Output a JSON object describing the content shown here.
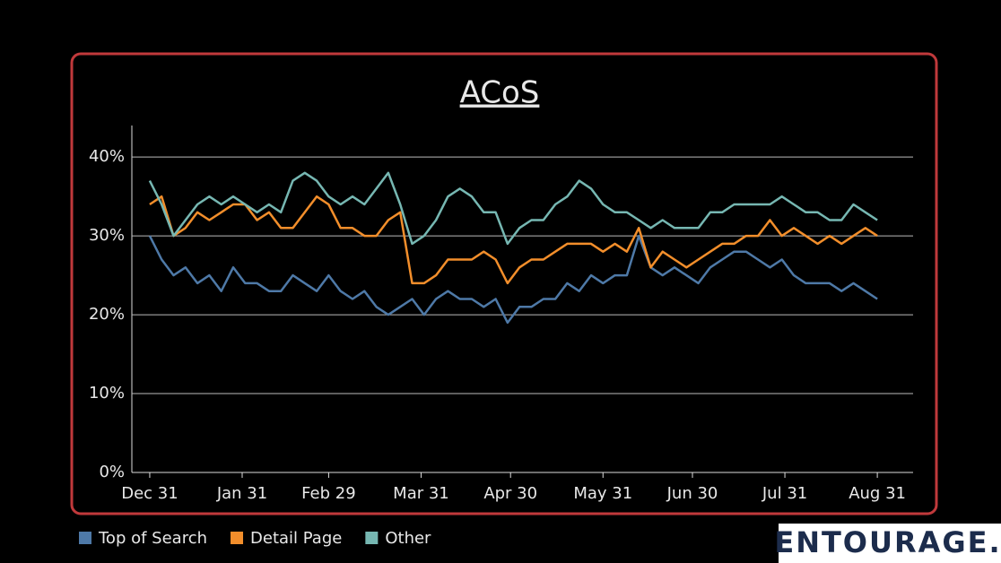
{
  "chart_data": {
    "type": "line",
    "title": "ACoS",
    "x": [
      0,
      4,
      8,
      12,
      16,
      20,
      24,
      28,
      32,
      36,
      40,
      44,
      48,
      52,
      56,
      60,
      64,
      68,
      72,
      76,
      80,
      84,
      88,
      92,
      96,
      100,
      104,
      108,
      112,
      116,
      120,
      124,
      128,
      132,
      136,
      140,
      144,
      148,
      152,
      156,
      160,
      164,
      168,
      172,
      176,
      180,
      184,
      188,
      192,
      196,
      200,
      204,
      208,
      212,
      216,
      220,
      224,
      228,
      232,
      236,
      240,
      244
    ],
    "xlim": [
      -6,
      256
    ],
    "xticks": [
      {
        "value": 0,
        "label": "Dec 31"
      },
      {
        "value": 31,
        "label": "Jan 31"
      },
      {
        "value": 60,
        "label": "Feb 29"
      },
      {
        "value": 91,
        "label": "Mar 31"
      },
      {
        "value": 121,
        "label": "Apr 30"
      },
      {
        "value": 152,
        "label": "May 31"
      },
      {
        "value": 182,
        "label": "Jun 30"
      },
      {
        "value": 213,
        "label": "Jul 31"
      },
      {
        "value": 244,
        "label": "Aug 31"
      }
    ],
    "ylim": [
      0,
      44
    ],
    "yticks": [
      {
        "value": 0,
        "label": "0%"
      },
      {
        "value": 10,
        "label": "10%"
      },
      {
        "value": 20,
        "label": "20%"
      },
      {
        "value": 30,
        "label": "30%"
      },
      {
        "value": 40,
        "label": "40%"
      }
    ],
    "grid": true,
    "series": [
      {
        "name": "Top of Search",
        "color": "#4e79a7",
        "values": [
          30,
          27,
          25,
          26,
          24,
          25,
          23,
          26,
          24,
          24,
          23,
          23,
          25,
          24,
          23,
          25,
          23,
          22,
          23,
          21,
          20,
          21,
          22,
          20,
          22,
          23,
          22,
          22,
          21,
          22,
          19,
          21,
          21,
          22,
          22,
          24,
          23,
          25,
          24,
          25,
          25,
          30,
          26,
          25,
          26,
          25,
          24,
          26,
          27,
          28,
          28,
          27,
          26,
          27,
          25,
          24,
          24,
          24,
          23,
          24,
          23,
          22
        ]
      },
      {
        "name": "Detail Page",
        "color": "#f28e2b",
        "values": [
          34,
          35,
          30,
          31,
          33,
          32,
          33,
          34,
          34,
          32,
          33,
          31,
          31,
          33,
          35,
          34,
          31,
          31,
          30,
          30,
          32,
          33,
          24,
          24,
          25,
          27,
          27,
          27,
          28,
          27,
          24,
          26,
          27,
          27,
          28,
          29,
          29,
          29,
          28,
          29,
          28,
          31,
          26,
          28,
          27,
          26,
          27,
          28,
          29,
          29,
          30,
          30,
          32,
          30,
          31,
          30,
          29,
          30,
          29,
          30,
          31,
          30
        ]
      },
      {
        "name": "Other",
        "color": "#76b7b2",
        "values": [
          37,
          34,
          30,
          32,
          34,
          35,
          34,
          35,
          34,
          33,
          34,
          33,
          37,
          38,
          37,
          35,
          34,
          35,
          34,
          36,
          38,
          34,
          29,
          30,
          32,
          35,
          36,
          35,
          33,
          33,
          29,
          31,
          32,
          32,
          34,
          35,
          37,
          36,
          34,
          33,
          33,
          32,
          31,
          32,
          31,
          31,
          31,
          33,
          33,
          34,
          34,
          34,
          34,
          35,
          34,
          33,
          33,
          32,
          32,
          34,
          33,
          32
        ]
      }
    ]
  },
  "logo": "ENTOURAGE."
}
